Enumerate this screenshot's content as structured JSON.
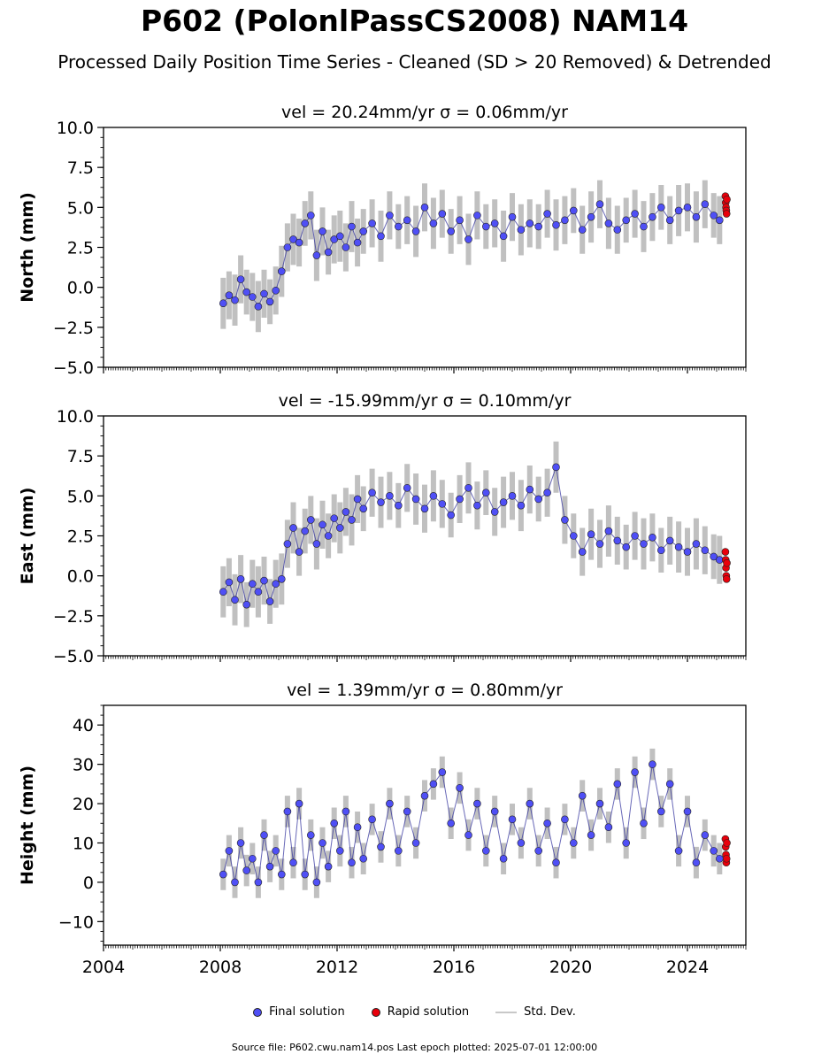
{
  "title": "P602 (PolonlPassCS2008) NAM14",
  "subtitle": "Processed Daily Position Time Series - Cleaned (SD > 20 Removed) & Detrended",
  "legend": {
    "final_label": "Final solution",
    "rapid_label": "Rapid solution",
    "std_label": "Std. Dev."
  },
  "footer": "Source file: P602.cwu.nam14.pos  Last epoch plotted: 2025-07-01 12:00:00",
  "colors": {
    "final": "#4f4ff5",
    "rapid": "#e8000b",
    "std_dev": "#8c8c8c",
    "marker_edge": "#222222"
  },
  "chart_data": [
    {
      "type": "scatter",
      "title": "vel = 20.24mm/yr   σ = 0.06mm/yr",
      "ylabel": "North (mm)",
      "xlim": [
        2004,
        2026
      ],
      "ylim": [
        -5,
        10
      ],
      "yticks": [
        -5.0,
        -2.5,
        0.0,
        2.5,
        5.0,
        7.5,
        10.0
      ],
      "ytick_labels": [
        "−5.0",
        "−2.5",
        "0.0",
        "2.5",
        "5.0",
        "7.5",
        "10.0"
      ],
      "grid": false,
      "series": [
        {
          "name": "Final solution",
          "x": [
            2008.1,
            2008.3,
            2008.5,
            2008.7,
            2008.9,
            2009.1,
            2009.3,
            2009.5,
            2009.7,
            2009.9,
            2010.1,
            2010.3,
            2010.5,
            2010.7,
            2010.9,
            2011.1,
            2011.3,
            2011.5,
            2011.7,
            2011.9,
            2012.1,
            2012.3,
            2012.5,
            2012.7,
            2012.9,
            2013.2,
            2013.5,
            2013.8,
            2014.1,
            2014.4,
            2014.7,
            2015.0,
            2015.3,
            2015.6,
            2015.9,
            2016.2,
            2016.5,
            2016.8,
            2017.1,
            2017.4,
            2017.7,
            2018.0,
            2018.3,
            2018.6,
            2018.9,
            2019.2,
            2019.5,
            2019.8,
            2020.1,
            2020.4,
            2020.7,
            2021.0,
            2021.3,
            2021.6,
            2021.9,
            2022.2,
            2022.5,
            2022.8,
            2023.1,
            2023.4,
            2023.7,
            2024.0,
            2024.3,
            2024.6,
            2024.9,
            2025.1
          ],
          "y": [
            -1.0,
            -0.5,
            -0.8,
            0.5,
            -0.3,
            -0.6,
            -1.2,
            -0.4,
            -0.9,
            -0.2,
            1.0,
            2.5,
            3.0,
            2.8,
            4.0,
            4.5,
            2.0,
            3.5,
            2.2,
            3.0,
            3.2,
            2.5,
            3.8,
            2.8,
            3.5,
            4.0,
            3.2,
            4.5,
            3.8,
            4.2,
            3.5,
            5.0,
            4.0,
            4.6,
            3.5,
            4.2,
            3.0,
            4.5,
            3.8,
            4.0,
            3.2,
            4.4,
            3.6,
            4.0,
            3.8,
            4.6,
            3.9,
            4.2,
            4.8,
            3.6,
            4.4,
            5.2,
            4.0,
            3.6,
            4.2,
            4.6,
            3.8,
            4.4,
            5.0,
            4.2,
            4.8,
            5.0,
            4.4,
            5.2,
            4.5,
            4.2
          ],
          "yerr": [
            1.6,
            1.5,
            1.6,
            1.5,
            1.4,
            1.5,
            1.6,
            1.5,
            1.4,
            1.5,
            1.6,
            1.5,
            1.6,
            1.5,
            1.4,
            1.5,
            1.6,
            1.5,
            1.4,
            1.5,
            1.6,
            1.5,
            1.6,
            1.5,
            1.4,
            1.5,
            1.6,
            1.5,
            1.4,
            1.5,
            1.6,
            1.5,
            1.6,
            1.5,
            1.4,
            1.5,
            1.6,
            1.5,
            1.4,
            1.5,
            1.6,
            1.5,
            1.6,
            1.5,
            1.4,
            1.5,
            1.6,
            1.5,
            1.4,
            1.5,
            1.6,
            1.5,
            1.6,
            1.5,
            1.4,
            1.5,
            1.6,
            1.5,
            1.4,
            1.5,
            1.6,
            1.5,
            1.6,
            1.5,
            1.4,
            1.5
          ]
        },
        {
          "name": "Rapid solution",
          "x": [
            2025.3,
            2025.31,
            2025.32,
            2025.33,
            2025.34,
            2025.35
          ],
          "y": [
            5.7,
            5.3,
            5.0,
            4.8,
            4.6,
            5.5
          ]
        }
      ]
    },
    {
      "type": "scatter",
      "title": "vel = -15.99mm/yr   σ = 0.10mm/yr",
      "ylabel": "East (mm)",
      "xlim": [
        2004,
        2026
      ],
      "ylim": [
        -5,
        10
      ],
      "yticks": [
        -5.0,
        -2.5,
        0.0,
        2.5,
        5.0,
        7.5,
        10.0
      ],
      "ytick_labels": [
        "−5.0",
        "−2.5",
        "0.0",
        "2.5",
        "5.0",
        "7.5",
        "10.0"
      ],
      "grid": false,
      "series": [
        {
          "name": "Final solution",
          "x": [
            2008.1,
            2008.3,
            2008.5,
            2008.7,
            2008.9,
            2009.1,
            2009.3,
            2009.5,
            2009.7,
            2009.9,
            2010.1,
            2010.3,
            2010.5,
            2010.7,
            2010.9,
            2011.1,
            2011.3,
            2011.5,
            2011.7,
            2011.9,
            2012.1,
            2012.3,
            2012.5,
            2012.7,
            2012.9,
            2013.2,
            2013.5,
            2013.8,
            2014.1,
            2014.4,
            2014.7,
            2015.0,
            2015.3,
            2015.6,
            2015.9,
            2016.2,
            2016.5,
            2016.8,
            2017.1,
            2017.4,
            2017.7,
            2018.0,
            2018.3,
            2018.6,
            2018.9,
            2019.2,
            2019.5,
            2019.8,
            2020.1,
            2020.4,
            2020.7,
            2021.0,
            2021.3,
            2021.6,
            2021.9,
            2022.2,
            2022.5,
            2022.8,
            2023.1,
            2023.4,
            2023.7,
            2024.0,
            2024.3,
            2024.6,
            2024.9,
            2025.1
          ],
          "y": [
            -1.0,
            -0.4,
            -1.5,
            -0.2,
            -1.8,
            -0.5,
            -1.0,
            -0.3,
            -1.6,
            -0.5,
            -0.2,
            2.0,
            3.0,
            1.5,
            2.8,
            3.5,
            2.0,
            3.2,
            2.5,
            3.6,
            3.0,
            4.0,
            3.5,
            4.8,
            4.2,
            5.2,
            4.6,
            5.0,
            4.4,
            5.5,
            4.8,
            4.2,
            5.0,
            4.5,
            3.8,
            4.8,
            5.5,
            4.4,
            5.2,
            4.0,
            4.6,
            5.0,
            4.4,
            5.4,
            4.8,
            5.2,
            6.8,
            3.5,
            2.5,
            1.5,
            2.6,
            2.0,
            2.8,
            2.2,
            1.8,
            2.5,
            2.0,
            2.4,
            1.6,
            2.2,
            1.8,
            1.5,
            2.0,
            1.6,
            1.2,
            1.0
          ],
          "yerr": [
            1.6,
            1.5,
            1.6,
            1.5,
            1.4,
            1.5,
            1.6,
            1.5,
            1.4,
            1.5,
            1.6,
            1.5,
            1.6,
            1.5,
            1.4,
            1.5,
            1.6,
            1.5,
            1.4,
            1.5,
            1.6,
            1.5,
            1.6,
            1.5,
            1.4,
            1.5,
            1.6,
            1.5,
            1.4,
            1.5,
            1.6,
            1.5,
            1.6,
            1.5,
            1.4,
            1.5,
            1.6,
            1.5,
            1.4,
            1.5,
            1.6,
            1.5,
            1.6,
            1.5,
            1.4,
            1.5,
            1.6,
            1.5,
            1.4,
            1.5,
            1.6,
            1.5,
            1.6,
            1.5,
            1.4,
            1.5,
            1.6,
            1.5,
            1.4,
            1.5,
            1.6,
            1.5,
            1.6,
            1.5,
            1.4,
            1.5
          ]
        },
        {
          "name": "Rapid solution",
          "x": [
            2025.3,
            2025.31,
            2025.32,
            2025.33,
            2025.34,
            2025.35
          ],
          "y": [
            1.5,
            1.0,
            0.5,
            0.0,
            -0.2,
            0.8
          ]
        }
      ]
    },
    {
      "type": "scatter",
      "title": "vel = 1.39mm/yr   σ = 0.80mm/yr",
      "ylabel": "Height (mm)",
      "xlim": [
        2004,
        2026
      ],
      "ylim": [
        -16,
        45
      ],
      "yticks": [
        -10,
        0,
        10,
        20,
        30,
        40
      ],
      "ytick_labels": [
        "−10",
        "0",
        "10",
        "20",
        "30",
        "40"
      ],
      "xticks": [
        2004,
        2008,
        2012,
        2016,
        2020,
        2024
      ],
      "xtick_labels": [
        "2004",
        "2008",
        "2012",
        "2016",
        "2020",
        "2024"
      ],
      "grid": false,
      "series": [
        {
          "name": "Final solution",
          "x": [
            2008.1,
            2008.3,
            2008.5,
            2008.7,
            2008.9,
            2009.1,
            2009.3,
            2009.5,
            2009.7,
            2009.9,
            2010.1,
            2010.3,
            2010.5,
            2010.7,
            2010.9,
            2011.1,
            2011.3,
            2011.5,
            2011.7,
            2011.9,
            2012.1,
            2012.3,
            2012.5,
            2012.7,
            2012.9,
            2013.2,
            2013.5,
            2013.8,
            2014.1,
            2014.4,
            2014.7,
            2015.0,
            2015.3,
            2015.6,
            2015.9,
            2016.2,
            2016.5,
            2016.8,
            2017.1,
            2017.4,
            2017.7,
            2018.0,
            2018.3,
            2018.6,
            2018.9,
            2019.2,
            2019.5,
            2019.8,
            2020.1,
            2020.4,
            2020.7,
            2021.0,
            2021.3,
            2021.6,
            2021.9,
            2022.2,
            2022.5,
            2022.8,
            2023.1,
            2023.4,
            2023.7,
            2024.0,
            2024.3,
            2024.6,
            2024.9,
            2025.1
          ],
          "y": [
            2,
            8,
            0,
            10,
            3,
            6,
            0,
            12,
            4,
            8,
            2,
            18,
            5,
            20,
            2,
            12,
            0,
            10,
            4,
            15,
            8,
            18,
            5,
            14,
            6,
            16,
            9,
            20,
            8,
            18,
            10,
            22,
            25,
            28,
            15,
            24,
            12,
            20,
            8,
            18,
            6,
            16,
            10,
            20,
            8,
            15,
            5,
            16,
            10,
            22,
            12,
            20,
            14,
            25,
            10,
            28,
            15,
            30,
            18,
            25,
            8,
            18,
            5,
            12,
            8,
            6
          ],
          "yerr": [
            4,
            4,
            4,
            4,
            4,
            4,
            4,
            4,
            4,
            4,
            4,
            4,
            4,
            4,
            4,
            4,
            4,
            4,
            4,
            4,
            4,
            4,
            4,
            4,
            4,
            4,
            4,
            4,
            4,
            4,
            4,
            4,
            4,
            4,
            4,
            4,
            4,
            4,
            4,
            4,
            4,
            4,
            4,
            4,
            4,
            4,
            4,
            4,
            4,
            4,
            4,
            4,
            4,
            4,
            4,
            4,
            4,
            4,
            4,
            4,
            4,
            4,
            4,
            4,
            4,
            4
          ]
        },
        {
          "name": "Rapid solution",
          "x": [
            2025.3,
            2025.31,
            2025.32,
            2025.33,
            2025.34,
            2025.35
          ],
          "y": [
            11,
            9,
            7,
            5,
            6,
            10
          ]
        }
      ]
    }
  ]
}
